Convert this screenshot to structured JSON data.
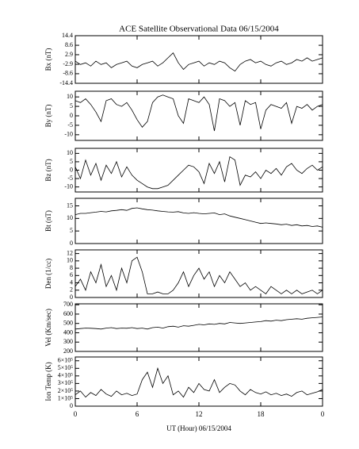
{
  "chart_data": {
    "type": "line",
    "title": "ACE Satellite Observational Data   06/15/2004",
    "xlabel": "UT (Hour)   06/15/2004",
    "color": "#000000",
    "xlim": [
      0,
      24
    ],
    "xticks": [
      0,
      6,
      12,
      18,
      {
        "value": 24,
        "label": "0"
      }
    ],
    "x": [
      0,
      0.5,
      1,
      1.5,
      2,
      2.5,
      3,
      3.5,
      4,
      4.5,
      5,
      5.5,
      6,
      6.5,
      7,
      7.5,
      8,
      8.5,
      9,
      9.5,
      10,
      10.5,
      11,
      11.5,
      12,
      12.5,
      13,
      13.5,
      14,
      14.5,
      15,
      15.5,
      16,
      16.5,
      17,
      17.5,
      18,
      18.5,
      19,
      19.5,
      20,
      20.5,
      21,
      21.5,
      22,
      22.5,
      23,
      23.5,
      24
    ],
    "panels": [
      {
        "ylabel": "Bx (nT)",
        "ylim": [
          -14.4,
          14.4
        ],
        "yticks": [
          -14.4,
          -8.6,
          -2.9,
          2.9,
          8.6,
          14.4
        ],
        "values": [
          -1,
          -3,
          -2,
          -4,
          -1,
          -3,
          -2,
          -5,
          -3,
          -2,
          -1,
          -4,
          -5,
          -3,
          -2,
          -1,
          -4,
          -2,
          1,
          4,
          -2,
          -6,
          -3,
          -2,
          -1,
          -4,
          -2,
          -3,
          -1,
          -2,
          -5,
          -7,
          -3,
          -1,
          0,
          -2,
          -1,
          -3,
          -4,
          -2,
          -1,
          -3,
          -2,
          0,
          -1,
          1,
          -1,
          0,
          1
        ]
      },
      {
        "ylabel": "By (nT)",
        "ylim": [
          -13,
          13
        ],
        "yticks": [
          -10,
          -5,
          0,
          5,
          10
        ],
        "values": [
          8,
          7,
          9,
          6,
          2,
          -3,
          8,
          9,
          6,
          5,
          7,
          3,
          -2,
          -6,
          -3,
          7,
          10,
          11,
          10,
          9,
          0,
          -4,
          9,
          8,
          7,
          10,
          6,
          -8,
          9,
          8,
          5,
          7,
          -5,
          8,
          6,
          7,
          -7,
          3,
          6,
          5,
          4,
          7,
          -4,
          5,
          4,
          6,
          3,
          5,
          6
        ]
      },
      {
        "ylabel": "Bz (nT)",
        "ylim": [
          -13,
          13
        ],
        "yticks": [
          -10,
          -5,
          0,
          5,
          10
        ],
        "values": [
          2,
          -5,
          6,
          -3,
          4,
          -6,
          3,
          -2,
          5,
          -4,
          2,
          -3,
          -6,
          -8,
          -10,
          -11,
          -11,
          -10,
          -9,
          -6,
          -3,
          0,
          3,
          2,
          -1,
          -8,
          4,
          -2,
          5,
          -7,
          8,
          6,
          -9,
          -3,
          -4,
          -1,
          -5,
          0,
          -2,
          1,
          -3,
          2,
          4,
          0,
          -2,
          1,
          3,
          0,
          2
        ]
      },
      {
        "ylabel": "Bt (nT)",
        "ylim": [
          0,
          18
        ],
        "yticks": [
          0,
          5,
          10,
          15
        ],
        "values": [
          11.5,
          12,
          12,
          12.3,
          12.5,
          12.8,
          12.6,
          13,
          13.2,
          13.5,
          13.2,
          14,
          14.2,
          13.8,
          13.5,
          13.3,
          13,
          12.8,
          12.6,
          12.5,
          12.7,
          12.2,
          12,
          12.3,
          12,
          11.8,
          12,
          12.2,
          11.5,
          11.8,
          11,
          10.5,
          10,
          9.5,
          9,
          8.5,
          8,
          8.2,
          8,
          7.8,
          7.5,
          7.7,
          7.2,
          7.5,
          7,
          7.2,
          6.8,
          7,
          6.5
        ]
      },
      {
        "ylabel": "Den (1/cc)",
        "ylim": [
          0,
          13
        ],
        "yticks": [
          0,
          2,
          4,
          6,
          8,
          10,
          12
        ],
        "values": [
          3,
          5,
          2,
          7,
          4,
          9,
          3,
          6,
          2,
          8,
          4,
          10,
          11,
          7,
          1,
          1,
          1.5,
          1,
          1,
          2,
          4,
          7,
          3,
          6,
          8,
          5,
          7,
          3,
          6,
          4,
          7,
          5,
          3,
          4,
          2,
          3,
          2,
          1,
          3,
          2,
          1,
          2,
          1,
          2,
          1,
          1.5,
          2,
          1,
          2
        ]
      },
      {
        "ylabel": "Vel (Km/sec)",
        "ylim": [
          200,
          710
        ],
        "yticks": [
          200,
          300,
          400,
          500,
          600,
          700
        ],
        "values": [
          440,
          445,
          450,
          448,
          445,
          440,
          450,
          455,
          445,
          450,
          448,
          455,
          445,
          450,
          440,
          455,
          460,
          450,
          465,
          470,
          460,
          475,
          470,
          480,
          490,
          485,
          495,
          490,
          500,
          495,
          510,
          505,
          500,
          505,
          510,
          515,
          520,
          530,
          525,
          535,
          530,
          540,
          545,
          550,
          545,
          555,
          560,
          565,
          570
        ]
      },
      {
        "ylabel": "Ion Temp (K)",
        "ylim": [
          0,
          650000
        ],
        "yticks": [
          0,
          {
            "value": 100000,
            "label": "1×10⁵"
          },
          {
            "value": 200000,
            "label": "2×10⁵"
          },
          {
            "value": 300000,
            "label": "3×10⁵"
          },
          {
            "value": 400000,
            "label": "4×10⁵"
          },
          {
            "value": 500000,
            "label": "5×10⁵"
          },
          {
            "value": 600000,
            "label": "6×10⁵"
          }
        ],
        "values": [
          150000,
          200000,
          120000,
          180000,
          140000,
          220000,
          160000,
          130000,
          200000,
          150000,
          170000,
          140000,
          160000,
          350000,
          450000,
          250000,
          500000,
          300000,
          400000,
          150000,
          200000,
          120000,
          250000,
          180000,
          300000,
          220000,
          200000,
          350000,
          180000,
          250000,
          300000,
          280000,
          200000,
          150000,
          220000,
          180000,
          160000,
          190000,
          150000,
          170000,
          140000,
          160000,
          130000,
          180000,
          200000,
          150000,
          170000,
          190000,
          220000
        ]
      }
    ]
  }
}
